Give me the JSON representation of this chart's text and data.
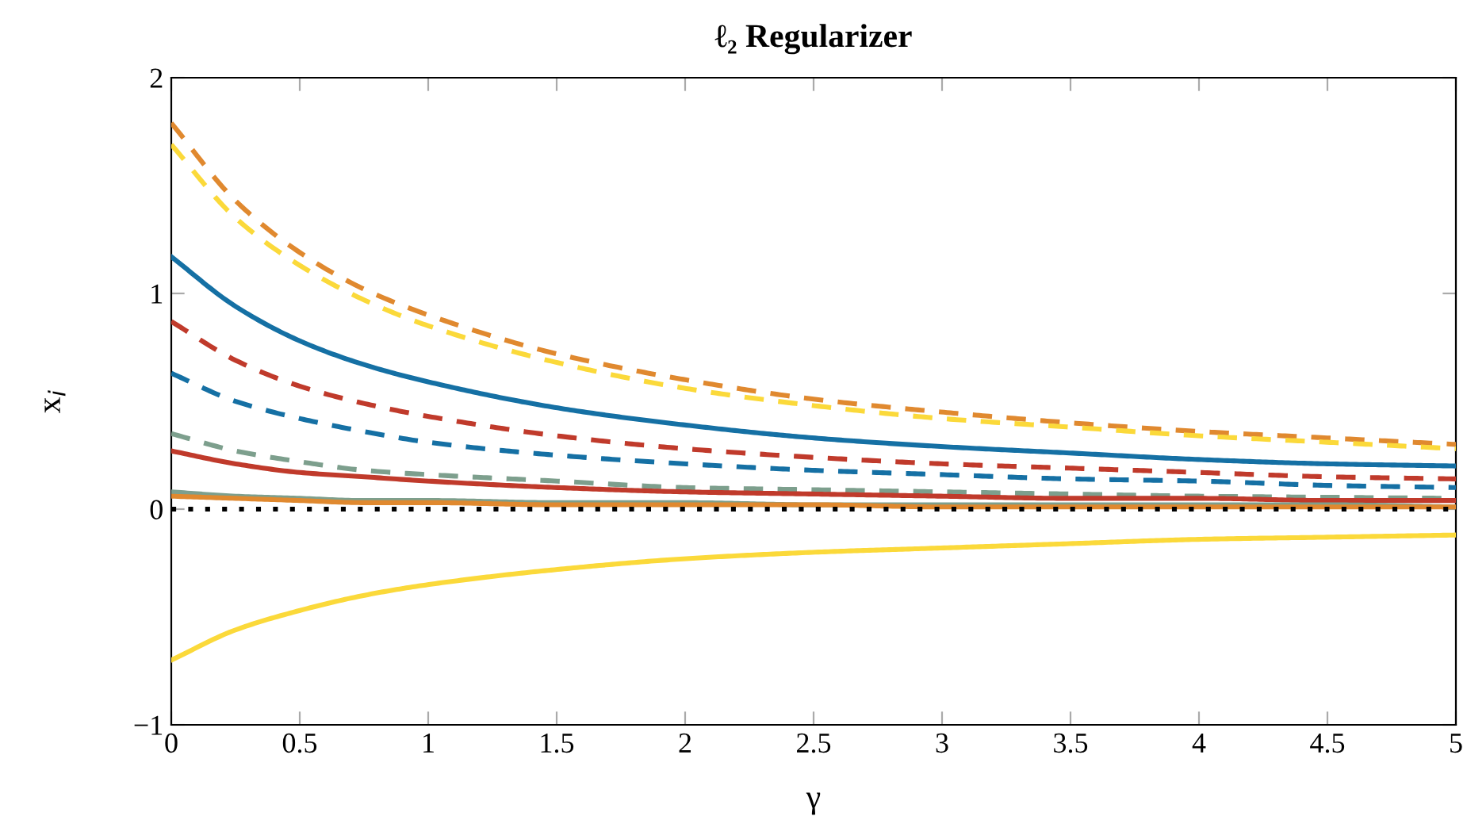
{
  "chart_data": {
    "type": "line",
    "title": "ℓ₂ Regularizer",
    "xlabel": "γ",
    "ylabel": "x$_{i}$",
    "x": [
      0,
      0.25,
      0.5,
      0.75,
      1,
      1.5,
      2,
      2.5,
      3,
      3.5,
      4,
      4.5,
      5
    ],
    "series": [
      {
        "color": "#e0892f",
        "line_style": "dashed",
        "values": [
          1.79,
          1.43,
          1.19,
          1.02,
          0.9,
          0.72,
          0.6,
          0.51,
          0.45,
          0.4,
          0.36,
          0.33,
          0.3
        ]
      },
      {
        "color": "#fbd93a",
        "line_style": "dashed",
        "values": [
          1.69,
          1.35,
          1.13,
          0.97,
          0.85,
          0.68,
          0.56,
          0.48,
          0.42,
          0.38,
          0.34,
          0.31,
          0.28
        ]
      },
      {
        "color": "#1570a4",
        "line_style": "solid",
        "values": [
          1.17,
          0.94,
          0.78,
          0.67,
          0.59,
          0.47,
          0.39,
          0.33,
          0.29,
          0.26,
          0.23,
          0.21,
          0.2
        ]
      },
      {
        "color": "#c03a2b",
        "line_style": "dashed",
        "values": [
          0.87,
          0.69,
          0.57,
          0.49,
          0.43,
          0.34,
          0.28,
          0.24,
          0.21,
          0.19,
          0.17,
          0.15,
          0.14
        ]
      },
      {
        "color": "#1570a4",
        "line_style": "dashed",
        "values": [
          0.63,
          0.5,
          0.42,
          0.36,
          0.31,
          0.25,
          0.21,
          0.18,
          0.16,
          0.14,
          0.13,
          0.11,
          0.1
        ]
      },
      {
        "color": "#7d9f8d",
        "line_style": "dashed",
        "values": [
          0.35,
          0.27,
          0.22,
          0.18,
          0.16,
          0.13,
          0.1,
          0.09,
          0.08,
          0.07,
          0.06,
          0.055,
          0.05
        ]
      },
      {
        "color": "#c03a2b",
        "line_style": "solid",
        "values": [
          0.27,
          0.21,
          0.17,
          0.15,
          0.13,
          0.1,
          0.08,
          0.07,
          0.06,
          0.05,
          0.05,
          0.04,
          0.04
        ]
      },
      {
        "color": "#7d9f8d",
        "line_style": "solid",
        "values": [
          0.08,
          0.06,
          0.05,
          0.04,
          0.04,
          0.03,
          0.03,
          0.02,
          0.02,
          0.02,
          0.02,
          0.02,
          0.01
        ]
      },
      {
        "color": "#e0892f",
        "line_style": "solid",
        "values": [
          0.06,
          0.05,
          0.04,
          0.03,
          0.03,
          0.02,
          0.02,
          0.02,
          0.01,
          0.01,
          0.01,
          0.01,
          0.01
        ]
      },
      {
        "color": "#fbd93a",
        "line_style": "solid",
        "values": [
          -0.7,
          -0.56,
          -0.47,
          -0.4,
          -0.35,
          -0.28,
          -0.23,
          -0.2,
          -0.18,
          -0.16,
          -0.14,
          -0.13,
          -0.12
        ]
      }
    ],
    "ref_lines": [
      {
        "axis": "y",
        "value": 0,
        "color": "#000000",
        "line_style": "dotted"
      }
    ],
    "xlim": [
      0,
      5
    ],
    "xticks": [
      0,
      0.5,
      1,
      1.5,
      2,
      2.5,
      3,
      3.5,
      4,
      4.5,
      5
    ],
    "ylim": [
      -1,
      2
    ],
    "yticks": [
      {
        "value": -1,
        "label": "−1"
      },
      0,
      1,
      2
    ],
    "grid": false
  }
}
